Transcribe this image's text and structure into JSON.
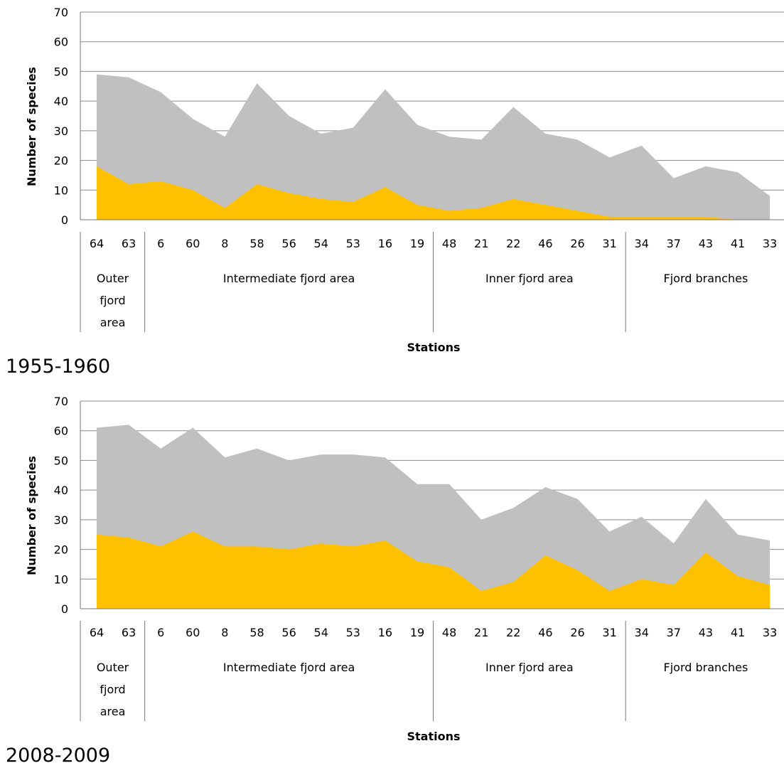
{
  "chart_data": [
    {
      "type": "area",
      "title": "",
      "caption": "1955-1960",
      "xlabel": "Stations",
      "ylabel": "Number of species",
      "ylim": [
        0,
        70
      ],
      "yticks": [
        0,
        10,
        20,
        30,
        40,
        50,
        60,
        70
      ],
      "grid": true,
      "categories": [
        "64",
        "63",
        "6",
        "60",
        "8",
        "58",
        "56",
        "54",
        "53",
        "16",
        "19",
        "48",
        "21",
        "22",
        "46",
        "26",
        "31",
        "34",
        "37",
        "43",
        "41",
        "33"
      ],
      "groups": [
        {
          "label": [
            "Outer",
            "fjord",
            "area"
          ],
          "start": 0,
          "end": 1
        },
        {
          "label": [
            "Intermediate fjord area"
          ],
          "start": 2,
          "end": 10
        },
        {
          "label": [
            "Inner fjord area"
          ],
          "start": 11,
          "end": 16
        },
        {
          "label": [
            "Fjord branches"
          ],
          "start": 17,
          "end": 21
        }
      ],
      "series": [
        {
          "color": "#c0c0c0",
          "values": [
            49,
            48,
            43,
            34,
            28,
            46,
            35,
            29,
            31,
            44,
            32,
            28,
            27,
            38,
            29,
            27,
            21,
            25,
            14,
            18,
            16,
            8
          ]
        },
        {
          "color": "#ffc000",
          "values": [
            18,
            12,
            13,
            10,
            4,
            12,
            9,
            7,
            6,
            11,
            5,
            3,
            4,
            7,
            5,
            3,
            1,
            1,
            1,
            1,
            0,
            0
          ]
        }
      ]
    },
    {
      "type": "area",
      "title": "",
      "caption": "2008-2009",
      "xlabel": "Stations",
      "ylabel": "Number of species",
      "ylim": [
        0,
        70
      ],
      "yticks": [
        0,
        10,
        20,
        30,
        40,
        50,
        60,
        70
      ],
      "grid": true,
      "categories": [
        "64",
        "63",
        "6",
        "60",
        "8",
        "58",
        "56",
        "54",
        "53",
        "16",
        "19",
        "48",
        "21",
        "22",
        "46",
        "26",
        "31",
        "34",
        "37",
        "43",
        "41",
        "33"
      ],
      "groups": [
        {
          "label": [
            "Outer",
            "fjord",
            "area"
          ],
          "start": 0,
          "end": 1
        },
        {
          "label": [
            "Intermediate fjord area"
          ],
          "start": 2,
          "end": 10
        },
        {
          "label": [
            "Inner fjord area"
          ],
          "start": 11,
          "end": 16
        },
        {
          "label": [
            "Fjord branches"
          ],
          "start": 17,
          "end": 21
        }
      ],
      "series": [
        {
          "color": "#c0c0c0",
          "values": [
            61,
            62,
            54,
            61,
            51,
            54,
            50,
            52,
            52,
            51,
            42,
            42,
            30,
            34,
            41,
            37,
            26,
            31,
            22,
            37,
            25,
            23
          ]
        },
        {
          "color": "#ffc000",
          "values": [
            25,
            24,
            21,
            26,
            21,
            21,
            20,
            22,
            21,
            23,
            16,
            14,
            6,
            9,
            18,
            13,
            6,
            10,
            8,
            19,
            11,
            8
          ]
        }
      ]
    }
  ]
}
